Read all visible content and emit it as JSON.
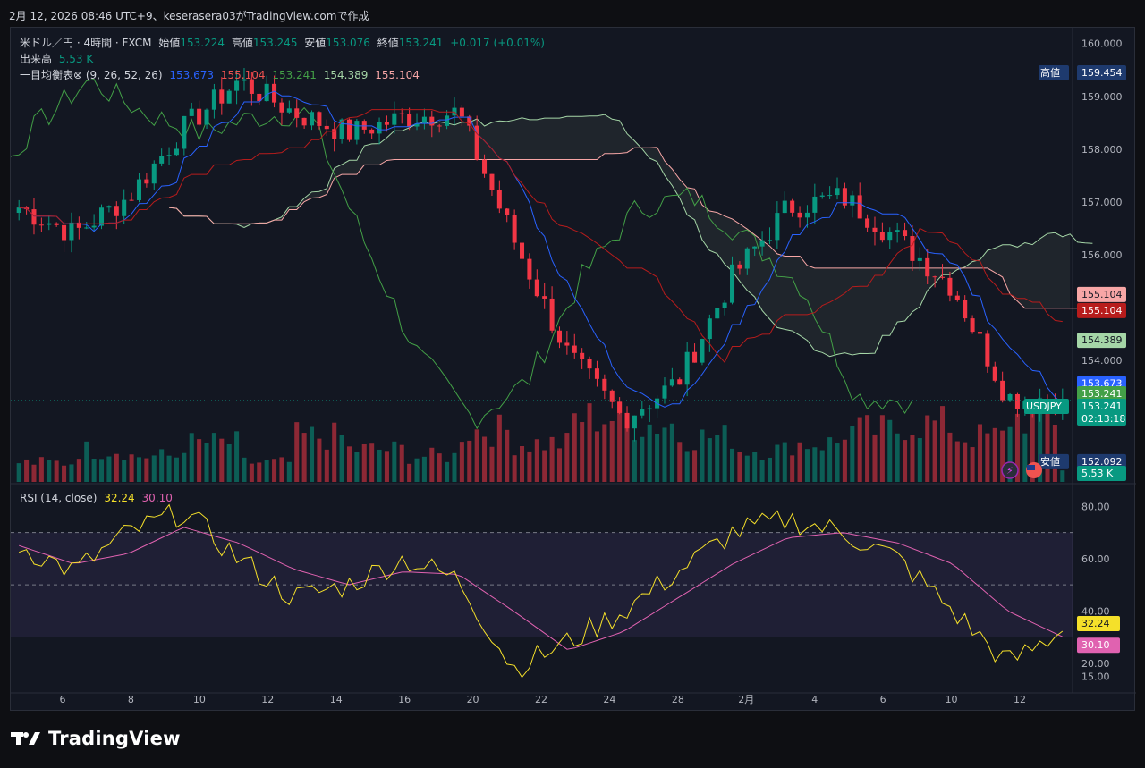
{
  "header": {
    "caption": "2月 12, 2026 08:46 UTC+9、keserasera03がTradingView.comで作成"
  },
  "legend": {
    "symbol": "米ドル／円 · 4時間 · FXCM",
    "open_label": "始値",
    "open": "153.224",
    "high_label": "高値",
    "high": "153.245",
    "low_label": "安値",
    "low": "153.076",
    "close_label": "終値",
    "close": "153.241",
    "change": "+0.017 (+0.01%)",
    "volume_label": "出来高",
    "volume": "5.53 K",
    "ichimoku_label": "一目均衡表⊗ (9, 26, 52, 26)",
    "ichimoku_values": [
      "153.673",
      "155.104",
      "153.241",
      "154.389",
      "155.104"
    ],
    "rsi_label": "RSI (14, close)",
    "rsi": "32.24",
    "rsi_ma": "30.10"
  },
  "price_axis": {
    "ticks": [
      "160.000",
      "159.000",
      "158.000",
      "157.000",
      "156.000",
      "155.000",
      "154.000",
      "153.000"
    ],
    "tags": [
      {
        "label": "高値",
        "value": "159.454",
        "color": "#1e3a6e"
      },
      {
        "value": "155.104",
        "color": "#f7a6a6",
        "text_color": "#131722"
      },
      {
        "value": "155.104",
        "color": "#b71c1c"
      },
      {
        "value": "154.389",
        "color": "#a5d6a7",
        "text_color": "#131722"
      },
      {
        "value": "153.673",
        "color": "#2962ff"
      },
      {
        "value": "153.241",
        "color": "#43a047"
      },
      {
        "label": "USDJPY",
        "value": "153.241",
        "sub": "02:13:18",
        "color": "#089981"
      },
      {
        "label": "安値",
        "value": "152.092",
        "color": "#1e3a6e"
      },
      {
        "value": "5.53 K",
        "color": "#089981"
      }
    ]
  },
  "rsi_axis": {
    "ticks": [
      "80.00",
      "60.00",
      "40.00",
      "20.00",
      "15.00"
    ],
    "tags": [
      "32.24",
      "30.10"
    ]
  },
  "time_axis": {
    "labels": [
      "6",
      "8",
      "10",
      "12",
      "14",
      "16",
      "20",
      "22",
      "24",
      "28",
      "2月",
      "4",
      "6",
      "10",
      "12"
    ]
  },
  "chart_data": {
    "type": "candlestick",
    "symbol": "USDJPY",
    "timeframe": "4時間",
    "ylim": [
      151.7,
      160.3
    ],
    "ohlc_anchor_closes": [
      156.9,
      156.4,
      157.1,
      158.4,
      159.3,
      158.7,
      158.3,
      158.6,
      158.7,
      156.3,
      154.1,
      152.9,
      153.6,
      155.6,
      156.9,
      157.1,
      156.3,
      155.4,
      153.3,
      153.24
    ],
    "volume_pattern": [
      0.3,
      0.5,
      0.4,
      0.6,
      0.3,
      0.7,
      0.5,
      0.4,
      0.8,
      0.6,
      1.0,
      0.9,
      0.7,
      0.5,
      0.6,
      0.8,
      0.9,
      0.7,
      1.0,
      0.2
    ],
    "rsi": {
      "ylim": [
        10,
        88
      ],
      "overbought": 70,
      "oversold": 30,
      "mid": 50,
      "rsi_anchor": [
        65,
        55,
        70,
        78,
        60,
        45,
        50,
        60,
        52,
        18,
        28,
        40,
        55,
        70,
        75,
        70,
        60,
        40,
        20,
        32.24
      ],
      "ma_anchor": [
        65,
        58,
        62,
        72,
        66,
        56,
        50,
        55,
        54,
        40,
        25,
        32,
        45,
        58,
        68,
        70,
        66,
        58,
        40,
        30.1
      ]
    }
  },
  "colors": {
    "up": "#089981",
    "down": "#f23645",
    "tenkan": "#2962ff",
    "kijun": "#b71c1c",
    "chikou": "#43a047",
    "spanA": "#a5d6a7",
    "spanB": "#f7a6a6",
    "rsi": "#f5e02a",
    "rsi_ma": "#e062b0"
  },
  "branding": {
    "name": "TradingView"
  }
}
